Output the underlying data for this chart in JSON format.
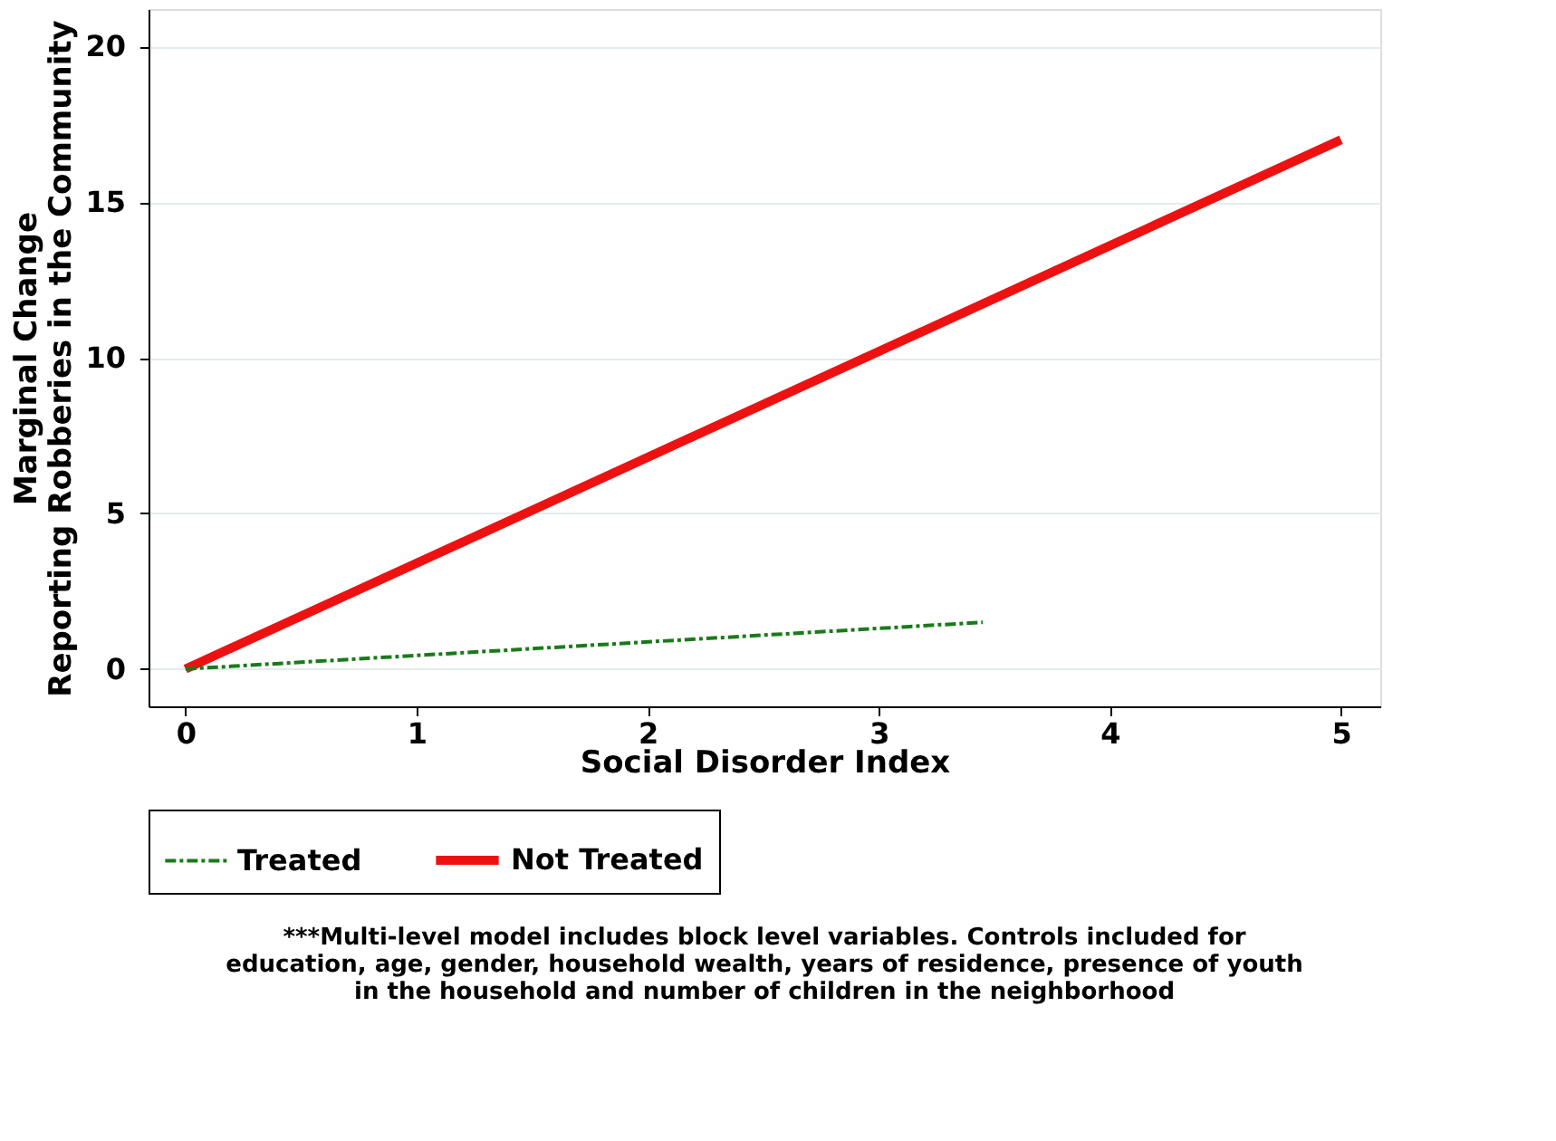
{
  "chart_data": {
    "type": "line",
    "xlabel": "Social Disorder Index",
    "ylabel": "Marginal Change\nReporting Robberies in the Community",
    "xlim": [
      -0.16,
      5.17
    ],
    "xticks": [
      0,
      1,
      2,
      3,
      4,
      5
    ],
    "ylim": [
      -1.2,
      21.2
    ],
    "yticks": [
      0,
      5,
      10,
      15,
      20
    ],
    "grid": "y",
    "legend": "bottom",
    "marker": "none",
    "series": [
      {
        "name": "Treated",
        "color": "#1a7a1a",
        "line_style": "dashdot",
        "x": [
          0,
          3.45
        ],
        "values": [
          0,
          1.5
        ]
      },
      {
        "name": "Not Treated",
        "color": "#ee1111",
        "line_style": "solid",
        "x": [
          0,
          5
        ],
        "values": [
          0,
          17
        ]
      }
    ],
    "annotations": [
      "***Multi-level model includes block level variables.  Controls included for\neducation, age, gender, household wealth, years of residence, presence of youth\nin the household and number of children in the neighborhood"
    ]
  }
}
